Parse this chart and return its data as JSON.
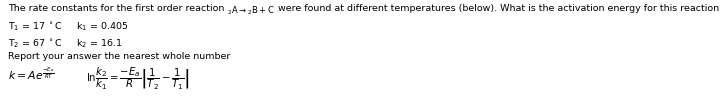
{
  "bg_color": "#ffffff",
  "text_color": "#000000",
  "figsize": [
    7.22,
    1.07
  ],
  "dpi": 100,
  "fs": 6.8,
  "line1": "The rate constants for the first order reaction ",
  "reaction": "2 A → 2 B + C",
  "line1_end": " were found at different temperatures (below). What is the activation energy for this reaction in kJ/mol?",
  "line2": "T$_1$ = 17 $^\\circ$C     k$_1$ = 0.405",
  "line3": "T$_2$ = 67 $^\\circ$C     k$_2$ = 16.1",
  "line4": "Report your answer the nearest whole number"
}
